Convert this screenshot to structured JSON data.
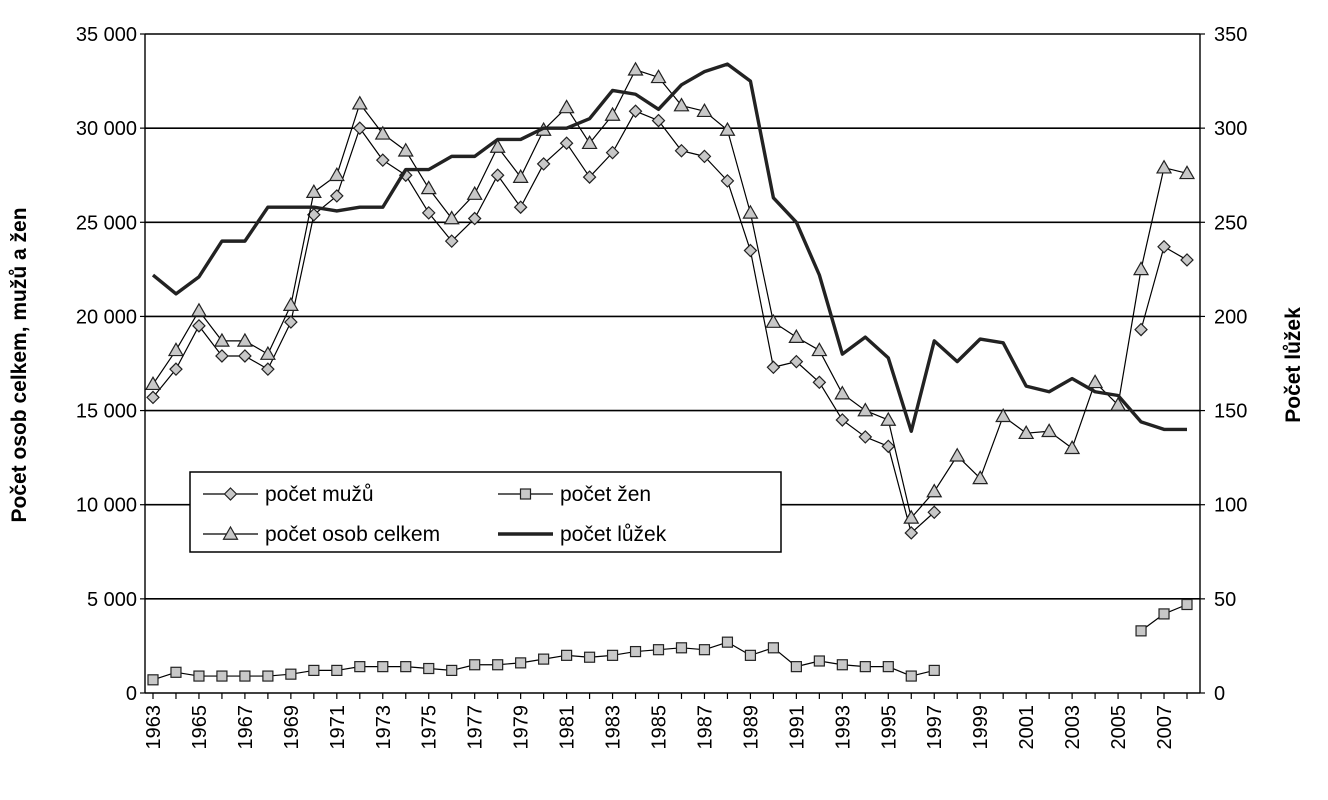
{
  "chart_data": {
    "type": "line",
    "x": [
      1963,
      1964,
      1965,
      1966,
      1967,
      1968,
      1969,
      1970,
      1971,
      1972,
      1973,
      1974,
      1975,
      1976,
      1977,
      1978,
      1979,
      1980,
      1981,
      1982,
      1983,
      1984,
      1985,
      1986,
      1987,
      1988,
      1989,
      1990,
      1991,
      1992,
      1993,
      1994,
      1995,
      1996,
      1997,
      1998,
      1999,
      2000,
      2001,
      2002,
      2003,
      2004,
      2005,
      2006,
      2007,
      2008
    ],
    "x_tick_labels": [
      "1963",
      "1965",
      "1967",
      "1969",
      "1971",
      "1973",
      "1975",
      "1977",
      "1979",
      "1981",
      "1983",
      "1985",
      "1987",
      "1989",
      "1991",
      "1993",
      "1995",
      "1997",
      "1999",
      "2001",
      "2003",
      "2005",
      "2007"
    ],
    "y_left": {
      "label": "Počet osob celkem, mužů  a žen",
      "lim": [
        0,
        35000
      ],
      "ticks": [
        0,
        5000,
        10000,
        15000,
        20000,
        25000,
        30000,
        35000
      ],
      "tick_labels": [
        "0",
        "5 000",
        "10 000",
        "15 000",
        "20 000",
        "25 000",
        "30 000",
        "35 000"
      ]
    },
    "y_right": {
      "label": "Počet lůžek",
      "lim": [
        0,
        350
      ],
      "ticks": [
        0,
        50,
        100,
        150,
        200,
        250,
        300,
        350
      ],
      "tick_labels": [
        "0",
        "50",
        "100",
        "150",
        "200",
        "250",
        "300",
        "350"
      ]
    },
    "grid": "horizontal",
    "legend_position": "lower-left inside plot",
    "series": [
      {
        "name": "počet mužů",
        "axis": "left",
        "marker": "diamond",
        "color": "#000000",
        "values": [
          15700,
          17200,
          19500,
          17900,
          17900,
          17200,
          19700,
          25400,
          26400,
          30000,
          28300,
          27500,
          25500,
          24000,
          25200,
          27500,
          25800,
          28100,
          29200,
          27400,
          28700,
          30900,
          30400,
          28800,
          28500,
          27200,
          23500,
          17300,
          17600,
          16500,
          14500,
          13600,
          13100,
          8500,
          9600,
          null,
          null,
          null,
          null,
          null,
          null,
          null,
          null,
          19300,
          23700,
          23000
        ]
      },
      {
        "name": "počet žen",
        "axis": "left",
        "marker": "square",
        "color": "#000000",
        "values": [
          700,
          1100,
          900,
          900,
          900,
          900,
          1000,
          1200,
          1200,
          1400,
          1400,
          1400,
          1300,
          1200,
          1500,
          1500,
          1600,
          1800,
          2000,
          1900,
          2000,
          2200,
          2300,
          2400,
          2300,
          2700,
          2000,
          2400,
          1400,
          1700,
          1500,
          1400,
          1400,
          900,
          1200,
          null,
          null,
          null,
          null,
          null,
          null,
          null,
          null,
          3300,
          4200,
          4700
        ]
      },
      {
        "name": "počet osob celkem",
        "axis": "left",
        "marker": "triangle",
        "color": "#000000",
        "values": [
          16400,
          18200,
          20300,
          18700,
          18700,
          18000,
          20600,
          26600,
          27500,
          31300,
          29700,
          28800,
          26800,
          25200,
          26500,
          29000,
          27400,
          29900,
          31100,
          29200,
          30700,
          33100,
          32700,
          31200,
          30900,
          29900,
          25500,
          19700,
          18900,
          18200,
          15900,
          15000,
          14500,
          9300,
          10700,
          12600,
          11400,
          14700,
          13800,
          13900,
          13000,
          16500,
          15300,
          22500,
          27900,
          27600
        ]
      },
      {
        "name": "počet lůžek",
        "axis": "right",
        "marker": "none",
        "color": "#222222",
        "values": [
          222,
          212,
          221,
          240,
          240,
          258,
          258,
          258,
          256,
          258,
          258,
          278,
          278,
          285,
          285,
          294,
          294,
          300,
          300,
          305,
          320,
          318,
          310,
          323,
          330,
          334,
          325,
          263,
          250,
          222,
          180,
          189,
          178,
          139,
          187,
          176,
          188,
          186,
          163,
          160,
          167,
          160,
          158,
          144,
          140,
          140
        ]
      }
    ]
  }
}
